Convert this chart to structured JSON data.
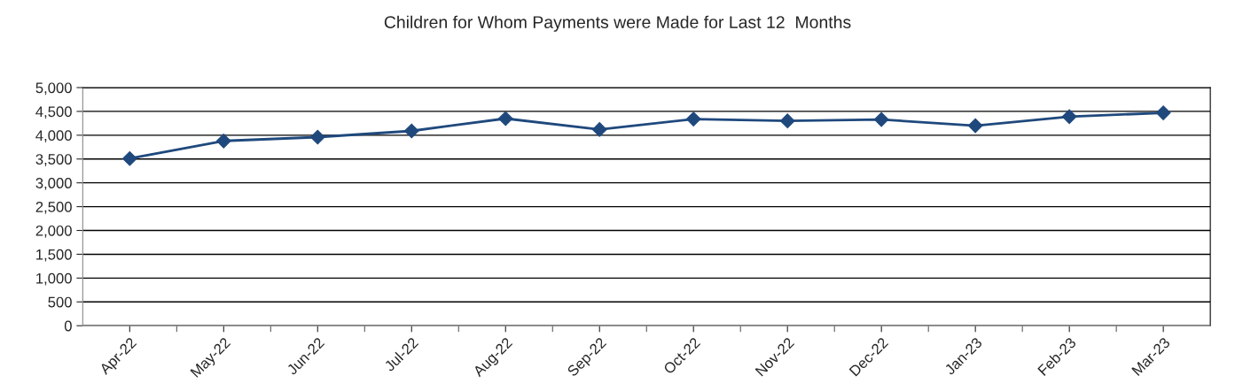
{
  "chart_data": {
    "type": "line",
    "title": "Children for Whom Payments were Made for Last 12  Months",
    "categories": [
      "Apr-22",
      "May-22",
      "Jun-22",
      "Jul-22",
      "Aug-22",
      "Sep-22",
      "Oct-22",
      "Nov-22",
      "Dec-22",
      "Jan-23",
      "Feb-23",
      "Mar-23"
    ],
    "series": [
      {
        "color": "#1f497d",
        "values": [
          3510,
          3880,
          3960,
          4090,
          4350,
          4120,
          4340,
          4300,
          4330,
          4200,
          4390,
          4470
        ]
      }
    ],
    "ylim": [
      0,
      5000
    ],
    "yticks": [
      {
        "value": 0,
        "label": "0"
      },
      {
        "value": 500,
        "label": "500"
      },
      {
        "value": 1000,
        "label": "1,000"
      },
      {
        "value": 1500,
        "label": "1,500"
      },
      {
        "value": 2000,
        "label": "2,000"
      },
      {
        "value": 2500,
        "label": "2,500"
      },
      {
        "value": 3000,
        "label": "3,000"
      },
      {
        "value": 3500,
        "label": "3,500"
      },
      {
        "value": 4000,
        "label": "4,000"
      },
      {
        "value": 4500,
        "label": "4,500"
      },
      {
        "value": 5000,
        "label": "5,000"
      }
    ],
    "grid": "y",
    "marker": "diamond",
    "line_style": "solid"
  }
}
